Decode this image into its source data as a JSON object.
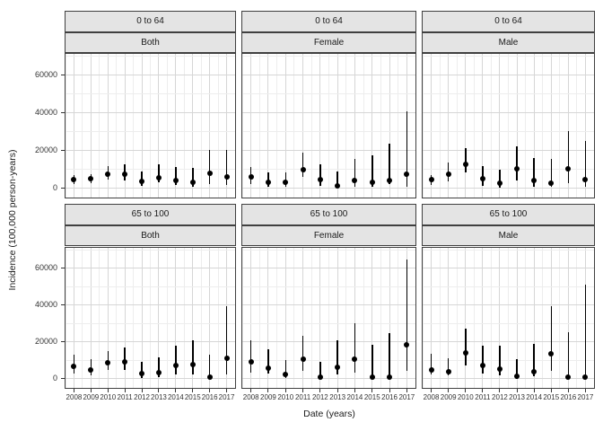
{
  "chart_data": {
    "type": "pointrange",
    "title": "",
    "xlabel": "Date (years)",
    "ylabel": "Incidence (100,000 person-years)",
    "x_categories": [
      "2008",
      "2009",
      "2010",
      "2011",
      "2012",
      "2013",
      "2014",
      "2015",
      "2016",
      "2017"
    ],
    "y_ticks": [
      "0",
      "20000",
      "40000",
      "60000"
    ],
    "y_tick_values": [
      0,
      20000,
      40000,
      60000
    ],
    "y_minor_values": [
      10000,
      30000,
      50000,
      70000
    ],
    "ylim": [
      -5000,
      71000
    ],
    "row_facets": [
      "0 to 64",
      "65 to 100"
    ],
    "col_facets": [
      "Both",
      "Female",
      "Male"
    ],
    "grid": "major+minor",
    "legend": "none",
    "value_format": [
      "estimate",
      "lower",
      "upper"
    ],
    "panels": [
      {
        "row_facet": "0 to 64",
        "col_facet": "Both",
        "values": [
          [
            4500,
            2200,
            6800
          ],
          [
            5000,
            2700,
            7500
          ],
          [
            7200,
            4500,
            11700
          ],
          [
            7300,
            3800,
            12700
          ],
          [
            3400,
            1100,
            9000
          ],
          [
            5500,
            3000,
            12700
          ],
          [
            4200,
            1500,
            11200
          ],
          [
            2900,
            800,
            10500
          ],
          [
            7600,
            1900,
            20000
          ],
          [
            5800,
            1500,
            20200
          ]
        ]
      },
      {
        "row_facet": "0 to 64",
        "col_facet": "Female",
        "values": [
          [
            5700,
            2300,
            11200
          ],
          [
            3000,
            800,
            8500
          ],
          [
            3000,
            800,
            8200
          ],
          [
            9800,
            6000,
            18700
          ],
          [
            4500,
            1200,
            12700
          ],
          [
            1100,
            0,
            9000
          ],
          [
            4000,
            900,
            15400
          ],
          [
            3000,
            800,
            17200
          ],
          [
            4200,
            2200,
            23500
          ],
          [
            7500,
            800,
            40800
          ]
        ]
      },
      {
        "row_facet": "0 to 64",
        "col_facet": "Male",
        "values": [
          [
            4500,
            1800,
            6800
          ],
          [
            7200,
            3700,
            13500
          ],
          [
            12500,
            8200,
            21000
          ],
          [
            4800,
            1000,
            11600
          ],
          [
            2700,
            0,
            9800
          ],
          [
            10000,
            4200,
            22000
          ],
          [
            4200,
            800,
            15800
          ],
          [
            2700,
            500,
            15400
          ],
          [
            10000,
            2700,
            30000
          ],
          [
            4500,
            800,
            25000
          ]
        ]
      },
      {
        "row_facet": "65 to 100",
        "col_facet": "Both",
        "values": [
          [
            6700,
            3000,
            12900
          ],
          [
            4800,
            1800,
            10400
          ],
          [
            8400,
            4900,
            14800
          ],
          [
            8900,
            4900,
            16700
          ],
          [
            2700,
            300,
            9300
          ],
          [
            3200,
            800,
            11400
          ],
          [
            7200,
            2200,
            17700
          ],
          [
            7900,
            2200,
            20700
          ],
          [
            800,
            0,
            12900
          ],
          [
            11100,
            2200,
            39200
          ]
        ]
      },
      {
        "row_facet": "65 to 100",
        "col_facet": "Female",
        "values": [
          [
            9000,
            3400,
            20700
          ],
          [
            5900,
            3000,
            15800
          ],
          [
            2200,
            300,
            9900
          ],
          [
            10400,
            4400,
            23200
          ],
          [
            800,
            0,
            9300
          ],
          [
            6200,
            2200,
            21000
          ],
          [
            10400,
            3400,
            29900
          ],
          [
            800,
            0,
            18200
          ],
          [
            800,
            0,
            24600
          ],
          [
            18200,
            4400,
            64800
          ]
        ]
      },
      {
        "row_facet": "65 to 100",
        "col_facet": "Male",
        "values": [
          [
            4900,
            2200,
            13700
          ],
          [
            3700,
            1800,
            11300
          ],
          [
            14000,
            7000,
            27000
          ],
          [
            7200,
            2700,
            17900
          ],
          [
            5300,
            1800,
            18000
          ],
          [
            1100,
            0,
            10800
          ],
          [
            4000,
            1500,
            18900
          ],
          [
            13700,
            4400,
            39200
          ],
          [
            900,
            0,
            25200
          ],
          [
            900,
            0,
            50800
          ]
        ]
      }
    ],
    "colors": {
      "point": "#000000",
      "error_bar": "#000000",
      "strip_background": "#e4e4e4",
      "panel_border": "#404040",
      "grid_major": "#d6d6d6",
      "grid_minor": "#ededed",
      "text": "#1a1a1a"
    }
  }
}
